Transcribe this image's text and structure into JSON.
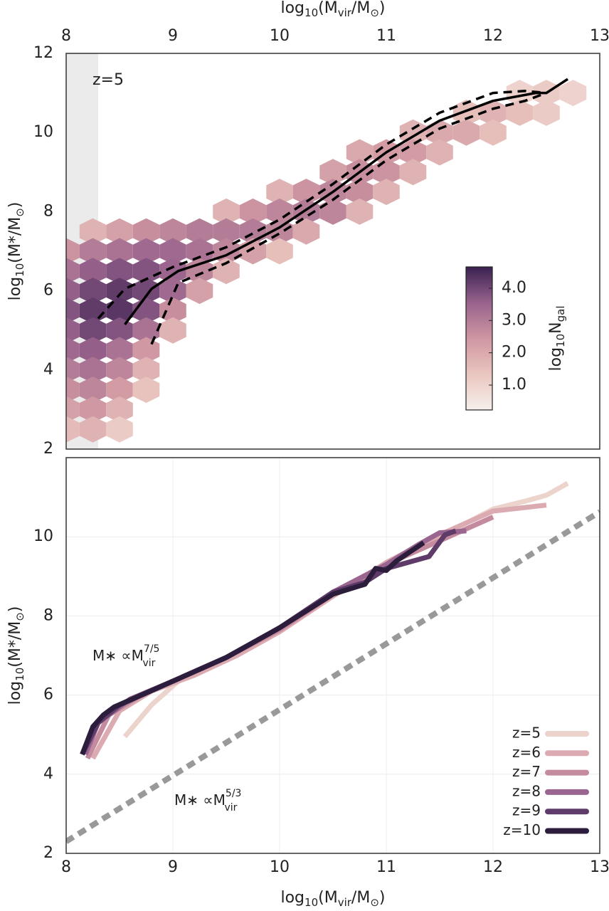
{
  "chart_data": [
    {
      "type": "hexbin",
      "xlabel": [
        "log",
        "10",
        "(M",
        "vir",
        "/M",
        "⊙",
        ")"
      ],
      "ylabel": [
        "log",
        "10",
        "(M*/M",
        "⊙",
        ")"
      ],
      "annotation": "z=5",
      "xlim": [
        8,
        13
      ],
      "ylim": [
        2,
        12
      ],
      "xticks": [
        8,
        9,
        10,
        11,
        12,
        13
      ],
      "yticks": [
        2,
        4,
        6,
        8,
        10,
        12
      ],
      "shaded_xrange": [
        8,
        8.3
      ],
      "shaded_color": "#ebebeb",
      "colorbar_label": [
        "log",
        "10",
        "N",
        "gal"
      ],
      "clim": [
        0.23,
        4.66
      ],
      "colormap": [
        "#f6efeb",
        "#eac6c0",
        "#cf96a1",
        "#98638d",
        "#3a2150"
      ],
      "colorbar_ticks": [
        {
          "value": 1,
          "label": "1.0"
        },
        {
          "value": 2,
          "label": "2.0"
        },
        {
          "value": 3,
          "label": "3.0"
        },
        {
          "value": 4,
          "label": "4.0"
        }
      ],
      "hexbin": {
        "cells": [
          [
            12.25,
            11,
            1.0
          ],
          [
            12.5,
            11,
            1.2
          ],
          [
            12.75,
            11,
            1.0
          ],
          [
            11.75,
            10.5,
            1.5
          ],
          [
            12,
            10.5,
            1.8
          ],
          [
            12.25,
            10.5,
            1.5
          ],
          [
            12.5,
            10.5,
            1.2
          ],
          [
            11.25,
            10,
            1.8
          ],
          [
            11.5,
            10,
            2.0
          ],
          [
            11.75,
            10,
            2.0
          ],
          [
            12,
            10,
            1.5
          ],
          [
            10.75,
            9.5,
            2.0
          ],
          [
            11,
            9.5,
            2.3
          ],
          [
            11.25,
            9.5,
            2.3
          ],
          [
            11.5,
            9.5,
            1.8
          ],
          [
            10.5,
            9,
            2.2
          ],
          [
            10.75,
            9,
            2.6
          ],
          [
            11,
            9,
            2.5
          ],
          [
            11.25,
            9,
            1.8
          ],
          [
            10,
            8.5,
            1.8
          ],
          [
            10.25,
            8.5,
            2.5
          ],
          [
            10.5,
            8.5,
            2.8
          ],
          [
            10.75,
            8.5,
            2.6
          ],
          [
            11,
            8.5,
            1.8
          ],
          [
            9.5,
            8,
            1.8
          ],
          [
            9.75,
            8,
            2.5
          ],
          [
            10,
            8,
            2.8
          ],
          [
            10.25,
            8,
            3.0
          ],
          [
            10.5,
            8,
            2.8
          ],
          [
            10.75,
            8,
            1.8
          ],
          [
            8.25,
            7.5,
            1.8
          ],
          [
            8.5,
            7.5,
            2.2
          ],
          [
            8.75,
            7.5,
            2.6
          ],
          [
            9,
            7.5,
            2.8
          ],
          [
            9.25,
            7.5,
            3.0
          ],
          [
            9.5,
            7.5,
            3.0
          ],
          [
            9.75,
            7.5,
            3.0
          ],
          [
            10,
            7.5,
            2.8
          ],
          [
            10.25,
            7.5,
            2.0
          ],
          [
            8,
            7,
            2.5
          ],
          [
            8.25,
            7,
            3.0
          ],
          [
            8.5,
            7,
            3.2
          ],
          [
            8.75,
            7,
            3.4
          ],
          [
            9,
            7,
            3.4
          ],
          [
            9.25,
            7,
            3.2
          ],
          [
            9.5,
            7,
            2.8
          ],
          [
            9.75,
            7,
            2.2
          ],
          [
            10,
            7,
            1.5
          ],
          [
            8,
            6.5,
            3.2
          ],
          [
            8.25,
            6.5,
            3.6
          ],
          [
            8.5,
            6.5,
            3.8
          ],
          [
            8.75,
            6.5,
            3.8
          ],
          [
            9,
            6.5,
            3.5
          ],
          [
            9.25,
            6.5,
            2.8
          ],
          [
            9.5,
            6.5,
            1.8
          ],
          [
            8,
            6,
            3.6
          ],
          [
            8.25,
            6,
            4.0
          ],
          [
            8.5,
            6,
            4.2
          ],
          [
            8.75,
            6,
            4.0
          ],
          [
            9,
            6,
            3.4
          ],
          [
            9.25,
            6,
            2.2
          ],
          [
            8,
            5.5,
            3.8
          ],
          [
            8.25,
            5.5,
            4.2
          ],
          [
            8.5,
            5.5,
            4.3
          ],
          [
            8.75,
            5.5,
            3.8
          ],
          [
            9,
            5.5,
            2.6
          ],
          [
            8,
            5,
            3.6
          ],
          [
            8.25,
            5,
            4.0
          ],
          [
            8.5,
            5,
            3.8
          ],
          [
            8.75,
            5,
            3.2
          ],
          [
            9,
            5,
            1.8
          ],
          [
            8,
            4.5,
            3.4
          ],
          [
            8.25,
            4.5,
            3.6
          ],
          [
            8.5,
            4.5,
            3.2
          ],
          [
            8.75,
            4.5,
            2.4
          ],
          [
            8,
            4,
            3.0
          ],
          [
            8.25,
            4,
            3.2
          ],
          [
            8.5,
            4,
            2.8
          ],
          [
            8.75,
            4,
            1.8
          ],
          [
            8,
            3.5,
            2.6
          ],
          [
            8.25,
            3.5,
            2.8
          ],
          [
            8.5,
            3.5,
            2.3
          ],
          [
            8.75,
            3.5,
            1.4
          ],
          [
            8,
            3,
            2.2
          ],
          [
            8.25,
            3,
            2.4
          ],
          [
            8.5,
            3,
            1.8
          ],
          [
            8,
            2.5,
            1.6
          ],
          [
            8.25,
            2.5,
            1.8
          ],
          [
            8.5,
            2.5,
            1.2
          ]
        ]
      },
      "series": [
        {
          "style": "solid",
          "color": "#000000",
          "x": [
            8.55,
            8.8,
            9.05,
            9.5,
            10,
            10.5,
            11,
            11.5,
            12,
            12.4,
            12.5,
            12.7
          ],
          "y": [
            5.15,
            6.05,
            6.5,
            6.9,
            7.6,
            8.5,
            9.5,
            10.3,
            10.8,
            11.0,
            11.0,
            11.35
          ]
        },
        {
          "style": "dashed",
          "color": "#000000",
          "x": [
            8.3,
            8.55,
            9,
            9.5,
            10,
            10.5,
            11,
            11.5,
            12,
            12.3,
            12.5
          ],
          "y": [
            5.3,
            6.05,
            6.6,
            7.1,
            7.8,
            8.7,
            9.7,
            10.5,
            11.0,
            11.05,
            11.0
          ]
        },
        {
          "style": "dashed",
          "color": "#000000",
          "x": [
            8.8,
            9.05,
            9.5,
            10,
            10.5,
            11,
            11.5,
            12,
            12.3,
            12.5
          ],
          "y": [
            4.65,
            6.2,
            6.7,
            7.45,
            8.3,
            9.3,
            10.1,
            10.6,
            10.8,
            11.0
          ]
        }
      ]
    },
    {
      "type": "line",
      "xlabel": [
        "log",
        "10",
        "(M",
        "vir",
        "/M",
        "⊙",
        ")"
      ],
      "ylabel": [
        "log",
        "10",
        "(M*/M",
        "⊙",
        ")"
      ],
      "xlim": [
        8,
        13
      ],
      "ylim": [
        2,
        12
      ],
      "xticks": [
        8,
        9,
        10,
        11,
        12,
        13
      ],
      "yticks": [
        2,
        4,
        6,
        8,
        10
      ],
      "grid": true,
      "legend": "lower right",
      "annotations": [
        {
          "base": "M∗ ∝M",
          "sup": "7/5",
          "sub": "vir"
        },
        {
          "base": "M∗ ∝M",
          "sup": "5/3",
          "sub": "vir"
        }
      ],
      "series": [
        {
          "style": "dotted",
          "color": "#999999",
          "x": [
            8,
            13
          ],
          "y": [
            2.3,
            10.63
          ]
        },
        {
          "name": "z=5",
          "color": "#ecd3cc",
          "x": [
            8.55,
            8.8,
            9.05,
            9.5,
            10,
            10.5,
            11,
            11.5,
            12,
            12.3,
            12.5,
            12.7
          ],
          "y": [
            4.95,
            5.75,
            6.35,
            6.95,
            7.7,
            8.5,
            9.3,
            10.0,
            10.7,
            10.9,
            11.05,
            11.35
          ]
        },
        {
          "name": "z=6",
          "color": "#dcabb1",
          "x": [
            8.25,
            8.5,
            8.8,
            9.2,
            9.6,
            10,
            10.5,
            11,
            11.5,
            12,
            12.5
          ],
          "y": [
            4.4,
            5.6,
            6.1,
            6.5,
            7.0,
            7.6,
            8.5,
            9.35,
            10.05,
            10.65,
            10.8
          ]
        },
        {
          "name": "z=7",
          "color": "#c48a9e",
          "x": [
            8.2,
            8.4,
            8.7,
            9,
            9.5,
            10,
            10.5,
            11,
            11.5,
            12
          ],
          "y": [
            4.4,
            5.5,
            6.0,
            6.35,
            6.95,
            7.65,
            8.55,
            9.3,
            9.9,
            10.5
          ]
        },
        {
          "name": "z=8",
          "color": "#9a6690",
          "x": [
            8.18,
            8.3,
            8.6,
            9,
            9.5,
            10,
            10.5,
            11,
            11.3,
            11.5,
            11.75
          ],
          "y": [
            4.5,
            5.3,
            5.9,
            6.35,
            6.95,
            7.7,
            8.6,
            9.3,
            9.8,
            10.1,
            10.15
          ]
        },
        {
          "name": "z=9",
          "color": "#5e3b69",
          "x": [
            8.15,
            8.3,
            8.5,
            9,
            9.5,
            10,
            10.5,
            10.8,
            11,
            11.4,
            11.55,
            11.65
          ],
          "y": [
            4.5,
            5.3,
            5.75,
            6.35,
            6.95,
            7.7,
            8.6,
            8.85,
            9.2,
            9.5,
            10.05,
            10.15
          ]
        },
        {
          "name": "z=10",
          "color": "#2c1d3c",
          "x": [
            8.15,
            8.25,
            8.35,
            8.45,
            9,
            9.5,
            10,
            10.5,
            10.8,
            10.9,
            11,
            11.1,
            11.35
          ],
          "y": [
            4.5,
            5.2,
            5.5,
            5.7,
            6.35,
            6.95,
            7.7,
            8.55,
            8.8,
            9.2,
            9.15,
            9.4,
            9.85
          ]
        }
      ]
    }
  ]
}
